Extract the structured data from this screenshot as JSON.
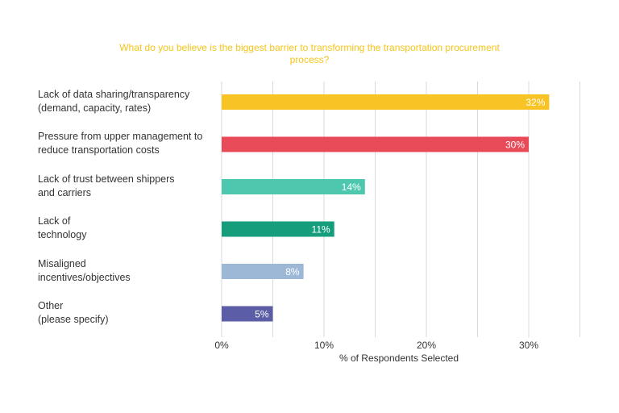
{
  "chart_data": {
    "type": "bar",
    "orientation": "horizontal",
    "title": "What do you believe is the biggest barrier to transforming the transportation procurement process?",
    "xlabel": "% of Respondents Selected",
    "ylabel": "",
    "categories": [
      [
        "Lack of data sharing/transparency",
        "(demand, capacity, rates)"
      ],
      [
        "Pressure from upper management to",
        "reduce transportation costs"
      ],
      [
        "Lack of trust between shippers",
        "and carriers"
      ],
      [
        "Lack of",
        "technology"
      ],
      [
        "Misaligned",
        "incentives/objectives"
      ],
      [
        "Other",
        "(please specify)"
      ]
    ],
    "values": [
      32,
      30,
      14,
      11,
      8,
      5
    ],
    "data_labels": [
      "32%",
      "30%",
      "14%",
      "11%",
      "8%",
      "5%"
    ],
    "colors": [
      "#f7c325",
      "#e84a58",
      "#4dc8ae",
      "#169e7c",
      "#9db8d6",
      "#5b5ea6"
    ],
    "xlim": [
      0,
      35
    ],
    "xticks": [
      0,
      10,
      20,
      30
    ],
    "xtick_labels": [
      "0%",
      "10%",
      "20%",
      "30%"
    ],
    "grid": true,
    "legend": "none"
  }
}
